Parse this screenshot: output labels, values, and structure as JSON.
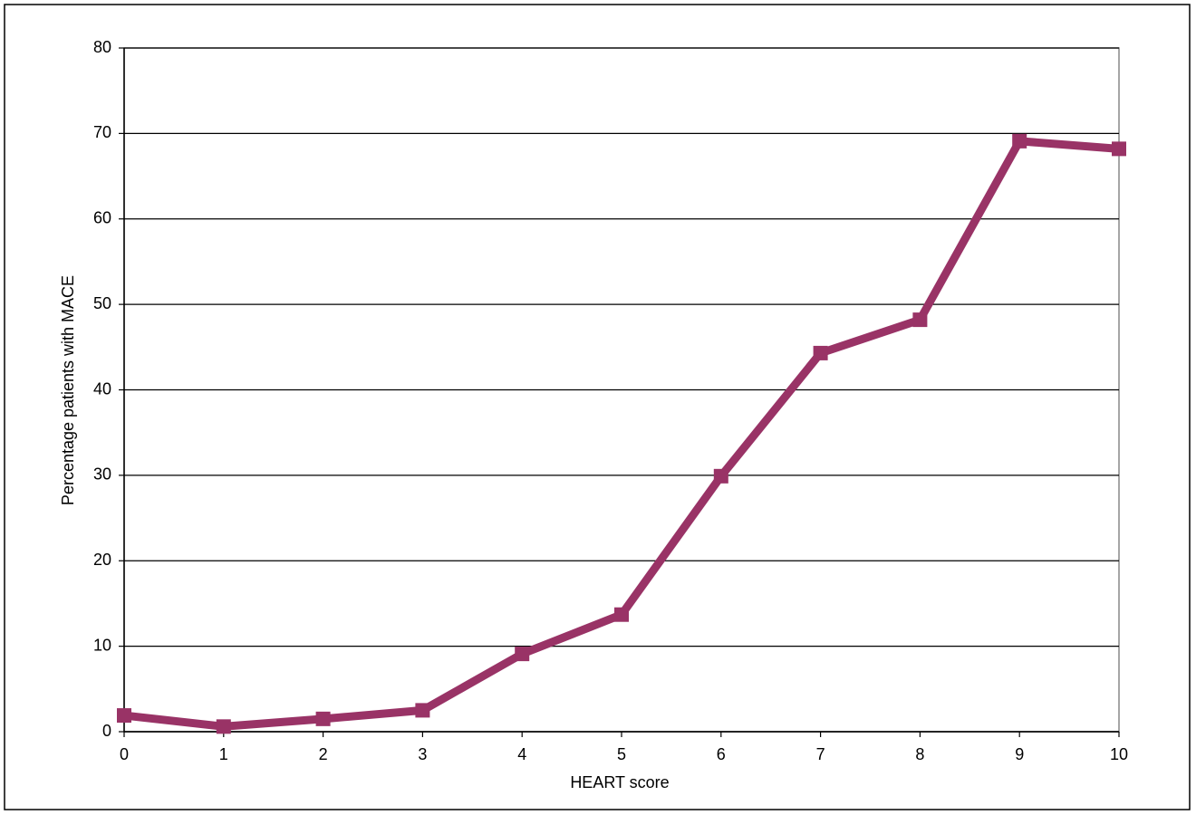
{
  "chart_data": {
    "type": "line",
    "x_label": "HEART score",
    "y_label": "Percentage patients with MACE",
    "x": [
      0,
      1,
      2,
      3,
      4,
      5,
      6,
      7,
      8,
      9,
      10
    ],
    "series": [
      {
        "name": "MACE",
        "color": "#993366",
        "values": [
          1.9,
          0.6,
          1.5,
          2.5,
          9.1,
          13.7,
          29.9,
          44.3,
          48.2,
          69.1,
          68.2
        ]
      }
    ],
    "xlim": [
      0,
      10
    ],
    "xticks": [
      0,
      1,
      2,
      3,
      4,
      5,
      6,
      7,
      8,
      9,
      10
    ],
    "ylim": [
      0,
      80
    ],
    "yticks": [
      0,
      10,
      20,
      30,
      40,
      50,
      60,
      70,
      80
    ],
    "grid": true
  }
}
